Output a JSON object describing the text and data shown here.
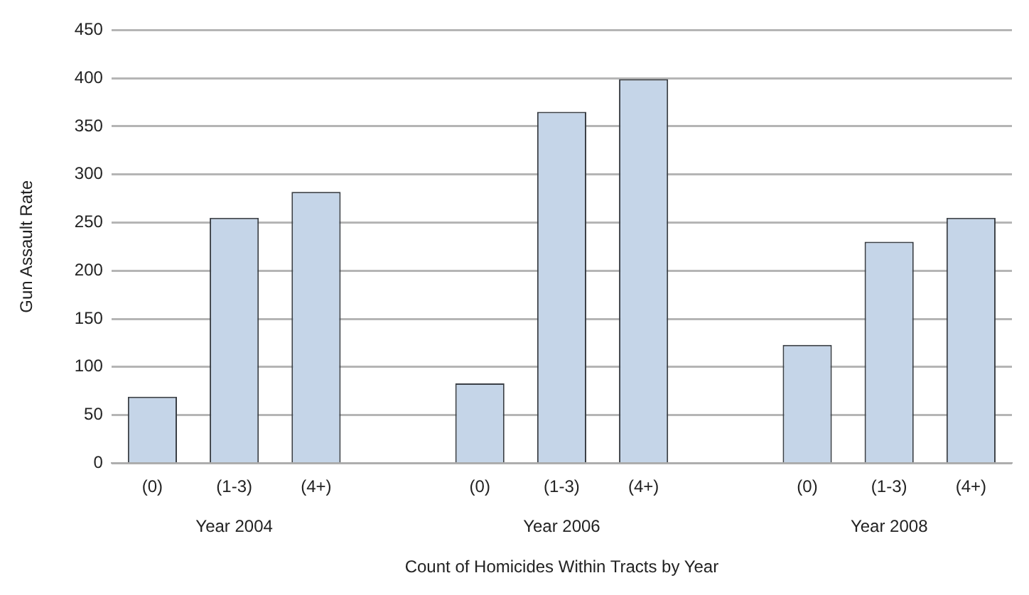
{
  "chart_data": {
    "type": "bar",
    "xlabel": "Count of Homicides Within Tracts by Year",
    "ylabel": "Gun Assault Rate",
    "categories": [
      "(0)",
      "(1-3)",
      "(4+)",
      null,
      "(0)",
      "(1-3)",
      "(4+)",
      null,
      "(0)",
      "(1-3)",
      "(4+)"
    ],
    "values": [
      69,
      255,
      282,
      null,
      83,
      365,
      399,
      null,
      123,
      230,
      255
    ],
    "color": "#c5d5e8",
    "annotations": [
      "Year 2004",
      "Year 2006",
      "Year 2008"
    ],
    "ylim": [
      0,
      450
    ],
    "yticks": [
      0,
      50,
      100,
      150,
      200,
      250,
      300,
      350,
      400,
      450
    ],
    "grid": "y",
    "legend": false
  }
}
